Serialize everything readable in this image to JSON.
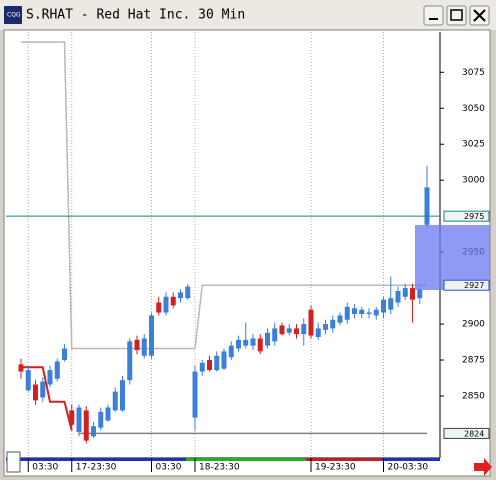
{
  "chart_data": {
    "type": "candlestick",
    "title": "S.RHAT - Red Hat Inc. 30 Min",
    "open": [
      2872,
      2854,
      2858,
      2849,
      2858,
      2862,
      2875,
      2840,
      2825,
      2840,
      2822,
      2828,
      2833,
      2840,
      2840,
      2861,
      2889,
      2878,
      2878,
      2915,
      2908,
      2919,
      2918,
      2918,
      2835,
      2867,
      2875,
      2868,
      2869,
      2877,
      2883,
      2885,
      2885,
      2890,
      2885,
      2888,
      2899,
      2894,
      2897,
      2893,
      2910,
      2891,
      2896,
      2897,
      2901,
      2903,
      2907,
      2907,
      2907,
      2906,
      2908,
      2910,
      2915,
      2919,
      2925,
      2918,
      2969
    ],
    "high": [
      2876,
      2871,
      2861,
      2863,
      2871,
      2876,
      2886,
      2844,
      2844,
      2843,
      2832,
      2842,
      2844,
      2856,
      2864,
      2890,
      2892,
      2893,
      2908,
      2919,
      2922,
      2922,
      2924,
      2928,
      2871,
      2875,
      2878,
      2881,
      2883,
      2888,
      2892,
      2901,
      2893,
      2893,
      2897,
      2901,
      2901,
      2900,
      2900,
      2904,
      2913,
      2901,
      2903,
      2906,
      2908,
      2915,
      2914,
      2912,
      2911,
      2912,
      2919,
      2933,
      2926,
      2928,
      2928,
      2926,
      3010
    ],
    "low": [
      2862,
      2853,
      2844,
      2846,
      2856,
      2860,
      2874,
      2828,
      2822,
      2817,
      2821,
      2826,
      2832,
      2839,
      2839,
      2858,
      2879,
      2876,
      2876,
      2906,
      2906,
      2911,
      2915,
      2917,
      2826,
      2864,
      2867,
      2867,
      2868,
      2875,
      2881,
      2883,
      2882,
      2879,
      2883,
      2885,
      2892,
      2892,
      2890,
      2885,
      2890,
      2889,
      2893,
      2894,
      2899,
      2900,
      2904,
      2904,
      2904,
      2903,
      2904,
      2907,
      2912,
      2917,
      2901,
      2914,
      2967
    ],
    "close": [
      2867,
      2868,
      2847,
      2860,
      2868,
      2874,
      2883,
      2830,
      2842,
      2819,
      2829,
      2839,
      2842,
      2853,
      2861,
      2888,
      2882,
      2890,
      2906,
      2908,
      2919,
      2913,
      2922,
      2926,
      2867,
      2873,
      2868,
      2878,
      2881,
      2885,
      2889,
      2889,
      2890,
      2881,
      2894,
      2897,
      2893,
      2897,
      2893,
      2900,
      2892,
      2897,
      2900,
      2903,
      2906,
      2912,
      2911,
      2910,
      2908,
      2910,
      2917,
      2918,
      2923,
      2925,
      2917,
      2924,
      2995
    ],
    "categories": [
      null,
      "03:30",
      null,
      null,
      null,
      null,
      null,
      "17-23:30",
      null,
      null,
      null,
      null,
      null,
      null,
      null,
      null,
      null,
      null,
      "03:30",
      null,
      null,
      null,
      null,
      null,
      "18-23:30",
      null,
      null,
      null,
      null,
      null,
      null,
      null,
      null,
      null,
      null,
      null,
      null,
      null,
      null,
      null,
      "19-23:30",
      null,
      null,
      null,
      null,
      null,
      null,
      null,
      null,
      null,
      "20-03:30",
      null,
      null,
      null,
      null,
      null,
      null
    ],
    "up_color": "#3a7fd8",
    "down_color": "#d02020",
    "lines": [
      {
        "color": "#b8b8b8",
        "values": [
          3096,
          3096,
          3096,
          3096,
          3096,
          3096,
          3096,
          2883,
          2883,
          2883,
          2883,
          2883,
          2883,
          2883,
          2883,
          2883,
          2883,
          2883,
          2883,
          2883,
          2883,
          2883,
          2883,
          2883,
          2883,
          2927,
          2927,
          2927,
          2927,
          2927,
          2927,
          2927,
          2927,
          2927,
          2927,
          2927,
          2927,
          2927,
          2927,
          2927,
          2927,
          2927,
          2927,
          2927,
          2927,
          2927,
          2927,
          2927,
          2927,
          2927,
          2927,
          2927,
          2927,
          2927,
          2927,
          2927,
          2927
        ]
      },
      {
        "color": "#808080",
        "values": [
          null,
          null,
          null,
          null,
          null,
          null,
          null,
          null,
          2824,
          2824,
          2824,
          2824,
          2824,
          2824,
          2824,
          2824,
          2824,
          2824,
          2824,
          2824,
          2824,
          2824,
          2824,
          2824,
          2824,
          2824,
          2824,
          2824,
          2824,
          2824,
          2824,
          2824,
          2824,
          2824,
          2824,
          2824,
          2824,
          2824,
          2824,
          2824,
          2824,
          2824,
          2824,
          2824,
          2824,
          2824,
          2824,
          2824,
          2824,
          2824,
          2824,
          2824,
          2824,
          2824,
          2824,
          2824,
          2824
        ]
      },
      {
        "color": "#d02020",
        "values": [
          2870,
          2870,
          2870,
          2870,
          2846,
          2846,
          2846,
          2826,
          null,
          null,
          null,
          null,
          null,
          null,
          null,
          null,
          null,
          null,
          null,
          null,
          null,
          null,
          null,
          null,
          null,
          null,
          null,
          null,
          null,
          null,
          null,
          null,
          null,
          null,
          null,
          null,
          null,
          null,
          null,
          null,
          null,
          null,
          null,
          null,
          null,
          null,
          null,
          null,
          null,
          null,
          null,
          null,
          null,
          null,
          null,
          null,
          null
        ]
      }
    ],
    "markers": [
      {
        "value": 2975,
        "color": "#1a8080"
      },
      {
        "value": 2927,
        "color": "#2a50d0"
      },
      {
        "value": 2824,
        "color": "#404040"
      }
    ],
    "ylim": [
      2809,
      3103
    ],
    "yticks": [
      2850,
      2875,
      2900,
      2950,
      3000,
      3025,
      3050,
      3075
    ]
  }
}
